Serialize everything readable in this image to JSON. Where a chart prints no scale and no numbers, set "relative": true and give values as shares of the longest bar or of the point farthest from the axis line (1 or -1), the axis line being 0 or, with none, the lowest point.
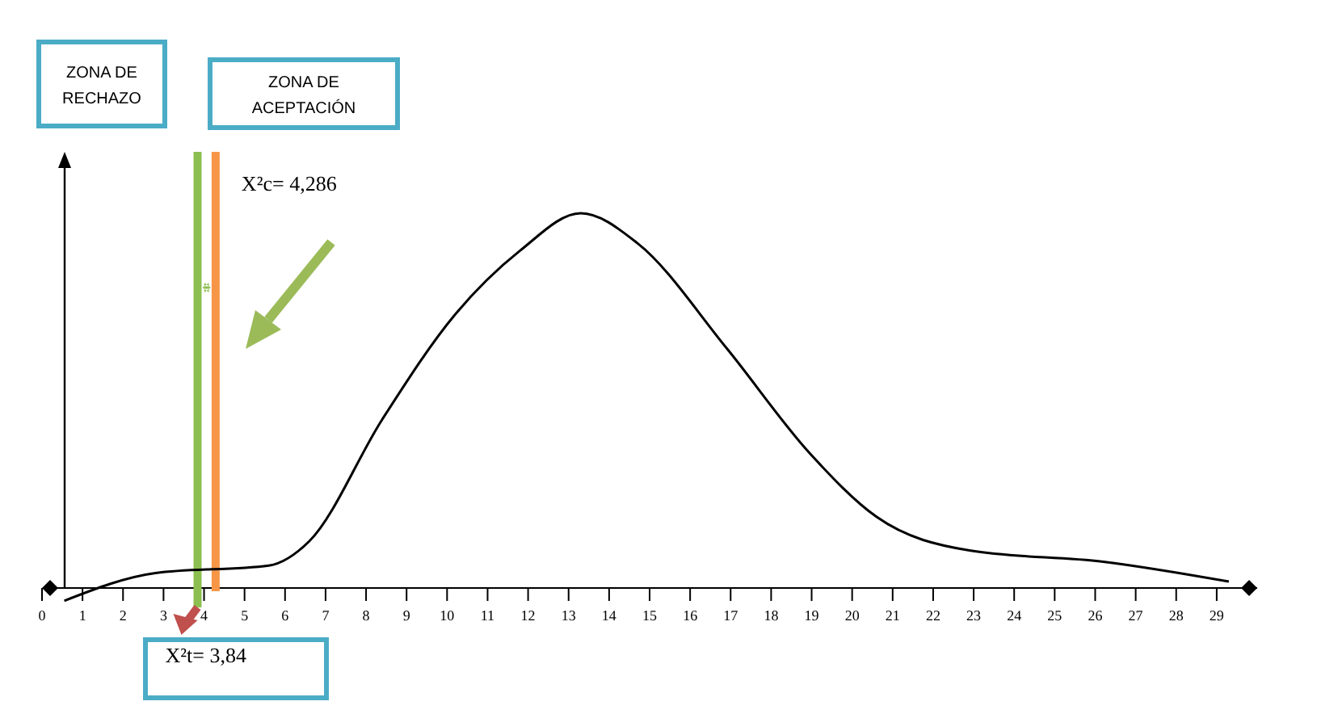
{
  "chart_data": {
    "type": "line",
    "relative": true,
    "tick_labels": "x",
    "marker": "none",
    "line_style": "solid",
    "x": [
      0.55,
      2.8,
      5.6,
      6.6,
      8.4,
      10.2,
      11.8,
      13.3,
      14.7,
      16.9,
      18.95,
      20.6,
      22.9,
      26.2,
      29.3
    ],
    "series": [
      {
        "color": "#000000",
        "values": [
          -0.034,
          0.04,
          0.06,
          0.125,
          0.45,
          0.73,
          0.9,
          1,
          0.92,
          0.64,
          0.36,
          0.19,
          0.1,
          0.07,
          0.017
        ]
      }
    ],
    "xlim": [
      0,
      30
    ],
    "xticks": [
      0,
      1,
      2,
      3,
      4,
      5,
      6,
      7,
      8,
      9,
      10,
      11,
      12,
      13,
      14,
      15,
      16,
      17,
      18,
      19,
      20,
      21,
      22,
      23,
      24,
      25,
      26,
      27,
      28,
      29
    ],
    "ref_lines": [
      {
        "axis": "x",
        "value": 3.84,
        "label": "X²t= 3,84",
        "color": "#8cbf4f"
      },
      {
        "axis": "x",
        "value": 4.286,
        "label": "X²c= 4,286",
        "color": "#f79646"
      }
    ],
    "annotations": [
      "ZONA DE RECHAZO",
      "ZONA DE ACEPTACIÓN"
    ]
  }
}
